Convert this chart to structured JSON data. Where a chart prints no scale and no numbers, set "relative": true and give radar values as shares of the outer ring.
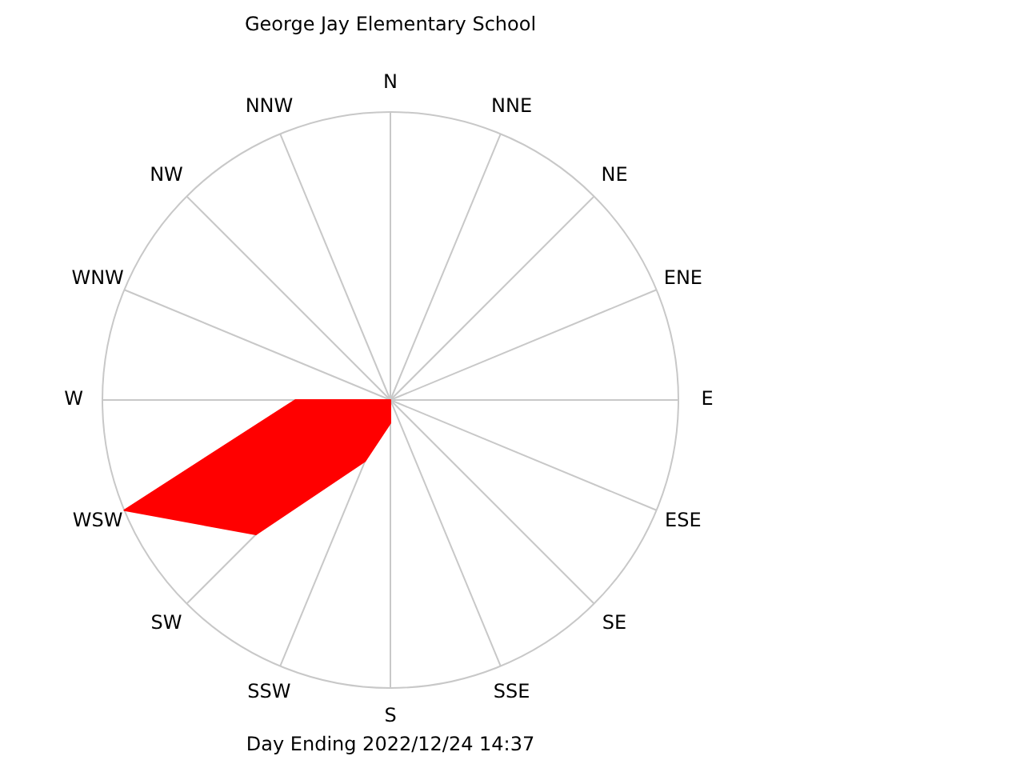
{
  "chart_data": {
    "type": "radar",
    "title": "George Jay Elementary School",
    "annotations": [
      "Day Ending 2022/12/24 14:37"
    ],
    "relative": true,
    "grid": true,
    "categories": [
      "N",
      "NNE",
      "NE",
      "ENE",
      "E",
      "ESE",
      "SE",
      "SSE",
      "S",
      "SSW",
      "SW",
      "WSW",
      "W",
      "WNW",
      "NW",
      "NNW"
    ],
    "series": [
      {
        "color": "#ff0000",
        "values": [
          0,
          0,
          0,
          0,
          0,
          0,
          0,
          0,
          0.08,
          0.23,
          0.66,
          1.0,
          0.33,
          0,
          0,
          0
        ]
      }
    ]
  }
}
